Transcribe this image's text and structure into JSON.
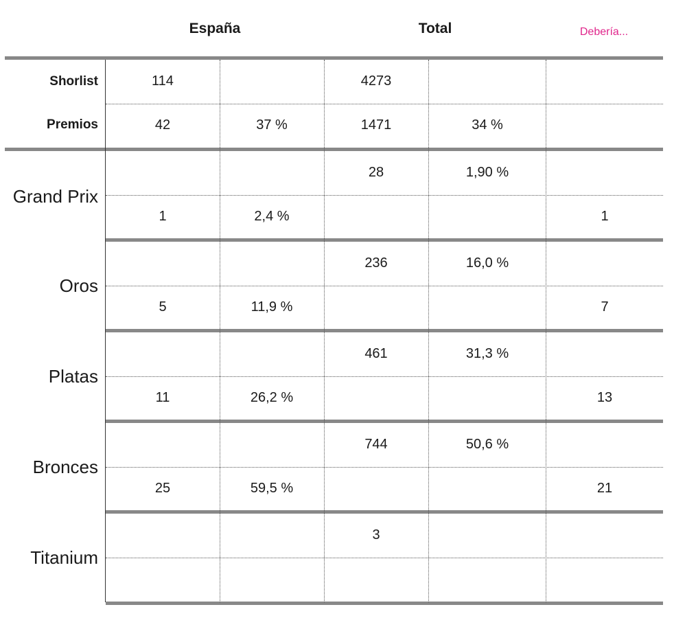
{
  "header": {
    "espana": "España",
    "total": "Total",
    "deberia": "Debería..."
  },
  "colors": {
    "accent": "#e0258b",
    "rule": "#888888"
  },
  "summary": [
    {
      "label": "Shorlist",
      "espana": "114",
      "espana_pct": "",
      "total": "4273",
      "total_pct": "",
      "deberia": ""
    },
    {
      "label": "Premios",
      "espana": "42",
      "espana_pct": "37 %",
      "total": "1471",
      "total_pct": "34 %",
      "deberia": ""
    }
  ],
  "groups": [
    {
      "label": "Grand Prix",
      "total": "28",
      "total_pct": "1,90 %",
      "espana": "1",
      "espana_pct": "2,4 %",
      "deberia": "1"
    },
    {
      "label": "Oros",
      "total": "236",
      "total_pct": "16,0 %",
      "espana": "5",
      "espana_pct": "11,9 %",
      "deberia": "7"
    },
    {
      "label": "Platas",
      "total": "461",
      "total_pct": "31,3 %",
      "espana": "11",
      "espana_pct": "26,2 %",
      "deberia": "13"
    },
    {
      "label": "Bronces",
      "total": "744",
      "total_pct": "50,6 %",
      "espana": "25",
      "espana_pct": "59,5 %",
      "deberia": "21"
    },
    {
      "label": "Titanium",
      "total": "3",
      "total_pct": "",
      "espana": "",
      "espana_pct": "",
      "deberia": ""
    }
  ]
}
